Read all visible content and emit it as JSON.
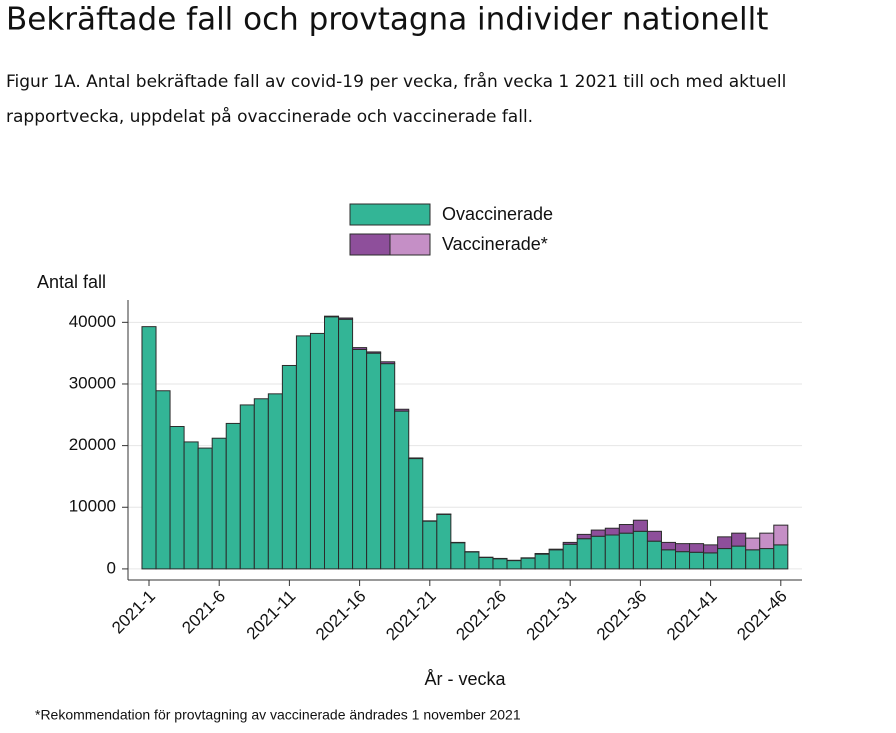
{
  "page": {
    "title": "Bekräftade fall och provtagna individer nationellt",
    "caption": [
      "Figur 1A. Antal bekräftade fall av covid-19 per vecka, från vecka 1 2021 till och med aktuell",
      "rapportvecka, uppdelat på ovaccinerade och vaccinerade fall."
    ]
  },
  "chart_data": {
    "type": "bar",
    "stacked": true,
    "ylabel": "Antal fall",
    "xlabel": "År - vecka",
    "footnote": "*Rekommendation för provtagning av vaccinerade ändrades 1 november 2021",
    "categories": [
      "2021-1",
      null,
      null,
      null,
      null,
      "2021-6",
      null,
      null,
      null,
      null,
      "2021-11",
      null,
      null,
      null,
      null,
      "2021-16",
      null,
      null,
      null,
      null,
      "2021-21",
      null,
      null,
      null,
      null,
      "2021-26",
      null,
      null,
      null,
      null,
      "2021-31",
      null,
      null,
      null,
      null,
      "2021-36",
      null,
      null,
      null,
      null,
      "2021-41",
      null,
      null,
      null,
      null,
      "2021-46"
    ],
    "series": [
      {
        "name": "Ovaccinerade",
        "color": "#33b596",
        "values": [
          39300,
          28900,
          23100,
          20600,
          19600,
          21200,
          23600,
          26600,
          27600,
          28400,
          33000,
          37800,
          38200,
          40900,
          40500,
          35600,
          35000,
          33300,
          25600,
          17900,
          7750,
          8850,
          4250,
          2750,
          1850,
          1650,
          1350,
          1750,
          2400,
          3100,
          4000,
          4900,
          5300,
          5500,
          5800,
          6100,
          4500,
          3100,
          2800,
          2700,
          2600,
          3300,
          3700,
          3100,
          3300,
          3900
        ]
      },
      {
        "name": "Vaccinerade*",
        "colors": [
          "#8e4f9b",
          "#8e4f9b",
          "#8e4f9b",
          "#8e4f9b",
          "#8e4f9b",
          "#8e4f9b",
          "#8e4f9b",
          "#8e4f9b",
          "#8e4f9b",
          "#8e4f9b",
          "#8e4f9b",
          "#8e4f9b",
          "#8e4f9b",
          "#8e4f9b",
          "#8e4f9b",
          "#8e4f9b",
          "#8e4f9b",
          "#8e4f9b",
          "#8e4f9b",
          "#8e4f9b",
          "#8e4f9b",
          "#8e4f9b",
          "#8e4f9b",
          "#8e4f9b",
          "#8e4f9b",
          "#8e4f9b",
          "#8e4f9b",
          "#8e4f9b",
          "#8e4f9b",
          "#8e4f9b",
          "#8e4f9b",
          "#8e4f9b",
          "#8e4f9b",
          "#8e4f9b",
          "#8e4f9b",
          "#8e4f9b",
          "#8e4f9b",
          "#8e4f9b",
          "#8e4f9b",
          "#8e4f9b",
          "#8e4f9b",
          "#8e4f9b",
          "#8e4f9b",
          "#c58fc6",
          "#c58fc6",
          "#c58fc6"
        ],
        "values": [
          0,
          0,
          0,
          0,
          0,
          0,
          0,
          0,
          0,
          0,
          0,
          0,
          0,
          100,
          200,
          300,
          200,
          300,
          300,
          100,
          50,
          50,
          50,
          50,
          50,
          50,
          50,
          50,
          100,
          100,
          300,
          700,
          1000,
          1100,
          1400,
          1800,
          1600,
          1200,
          1300,
          1400,
          1300,
          1900,
          2100,
          1900,
          2500,
          3200
        ]
      }
    ],
    "ylim": [
      -1800,
      42000
    ],
    "yticks": [
      0,
      10000,
      20000,
      30000,
      40000
    ],
    "grid": true,
    "legend": "top"
  }
}
